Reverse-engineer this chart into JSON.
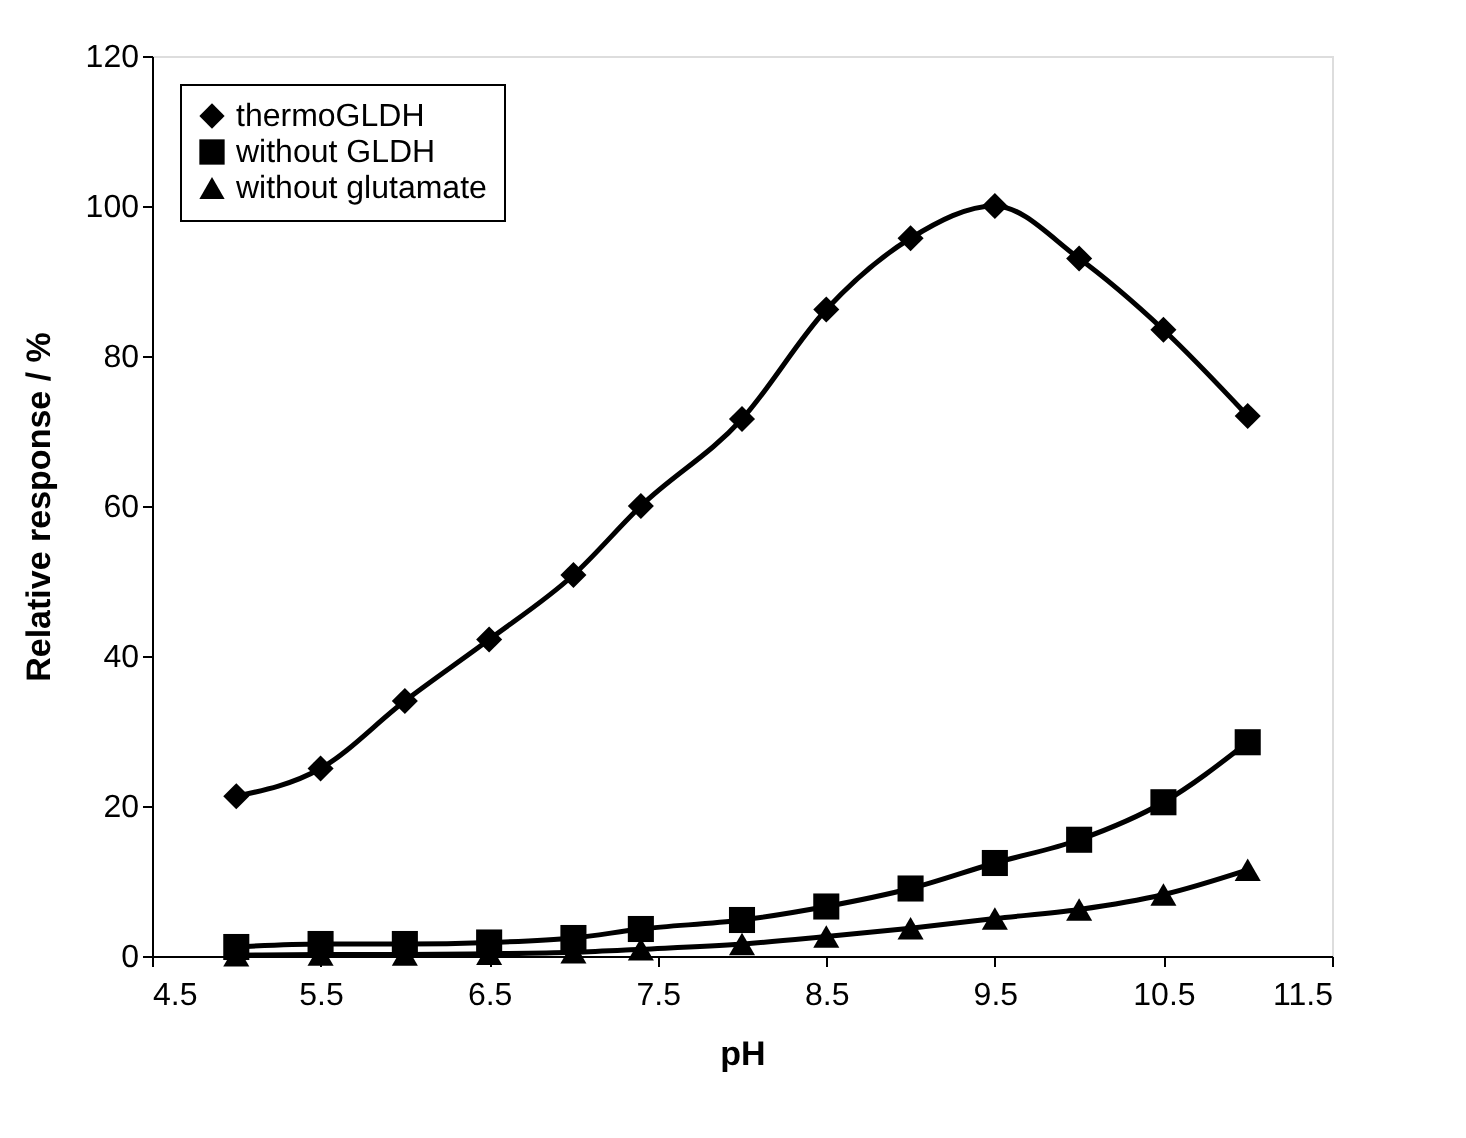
{
  "chart_data": {
    "type": "line",
    "xlabel": "pH",
    "ylabel": "Relative response / %",
    "x": [
      5,
      5.5,
      6,
      6.5,
      7,
      7.4,
      8,
      8.5,
      9,
      9.5,
      10,
      10.5,
      11
    ],
    "series": [
      {
        "name": "thermoGLDH",
        "color": "#000000",
        "marker": "diamond",
        "values": [
          21.3,
          25,
          34,
          42.2,
          50.8,
          60,
          71.6,
          86.2,
          95.7,
          100,
          93,
          83.5,
          72
        ]
      },
      {
        "name": "without GLDH",
        "color": "#000000",
        "marker": "square",
        "values": [
          1.2,
          1.6,
          1.6,
          1.8,
          2.4,
          3.6,
          4.8,
          6.6,
          9,
          12.4,
          15.5,
          20.5,
          28.5
        ]
      },
      {
        "name": "without glutamate",
        "color": "#000000",
        "marker": "triangle",
        "values": [
          0.1,
          0.2,
          0.2,
          0.3,
          0.5,
          0.9,
          1.6,
          2.6,
          3.7,
          5,
          6.2,
          8.2,
          11.5
        ]
      }
    ],
    "xlim": [
      4.5,
      11.5
    ],
    "xticks": [
      4.5,
      5.5,
      6.5,
      7.5,
      8.5,
      9.5,
      10.5,
      11.5
    ],
    "ylim": [
      0,
      120
    ],
    "yticks": [
      0,
      20,
      40,
      60,
      80,
      100,
      120
    ],
    "grid": false,
    "legend": "top left",
    "line_style": "solid"
  }
}
